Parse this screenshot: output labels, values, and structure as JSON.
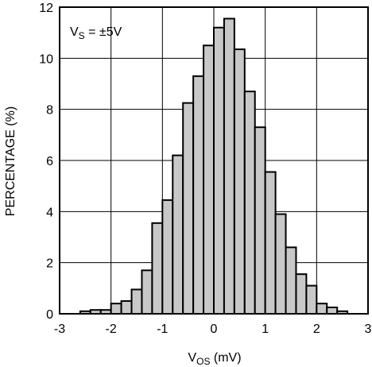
{
  "chart_data": {
    "type": "bar",
    "title": "",
    "annotation": {
      "main": "V",
      "sub": "S",
      "rest": " = ±5V"
    },
    "xlabel": {
      "main": "V",
      "sub": "OS",
      "rest": " (mV)"
    },
    "ylabel": "PERCENTAGE (%)",
    "xlim": [
      -3,
      3
    ],
    "ylim": [
      0,
      12
    ],
    "xticks": [
      "-3",
      "-2",
      "-1",
      "0",
      "1",
      "2",
      "3"
    ],
    "yticks": [
      "0",
      "2",
      "4",
      "6",
      "8",
      "10",
      "12"
    ],
    "grid": true,
    "bin_width": 0.2,
    "bin_starts": [
      -2.6,
      -2.4,
      -2.2,
      -2.0,
      -1.8,
      -1.6,
      -1.4,
      -1.2,
      -1.0,
      -0.8,
      -0.6,
      -0.4,
      -0.2,
      0.0,
      0.2,
      0.4,
      0.6,
      0.8,
      1.0,
      1.2,
      1.4,
      1.6,
      1.8,
      2.0,
      2.2,
      2.4
    ],
    "values": [
      0.1,
      0.15,
      0.15,
      0.4,
      0.5,
      0.95,
      1.7,
      3.55,
      4.45,
      6.2,
      8.25,
      9.3,
      10.5,
      11.2,
      11.55,
      10.35,
      8.7,
      7.3,
      5.55,
      3.9,
      2.6,
      1.55,
      1.1,
      0.4,
      0.25,
      0.1
    ],
    "colors": {
      "bar_fill": "#c8c8c8",
      "bar_stroke": "#000000",
      "grid": "#000000"
    }
  }
}
